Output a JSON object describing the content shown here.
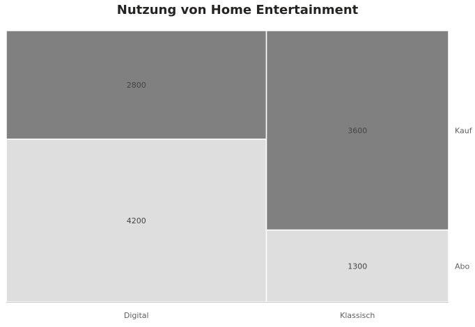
{
  "chart_data": {
    "type": "mekko",
    "title": "Nutzung von Home Entertainment",
    "categories": [
      "Digital",
      "Klassisch"
    ],
    "series": [
      {
        "name": "Abo",
        "values": [
          4200,
          1300
        ],
        "color": "#dedede"
      },
      {
        "name": "Kauf",
        "values": [
          2800,
          3600
        ],
        "color": "#808080"
      }
    ],
    "xlabel": "",
    "ylabel": "",
    "legend": "right",
    "grid": false
  }
}
